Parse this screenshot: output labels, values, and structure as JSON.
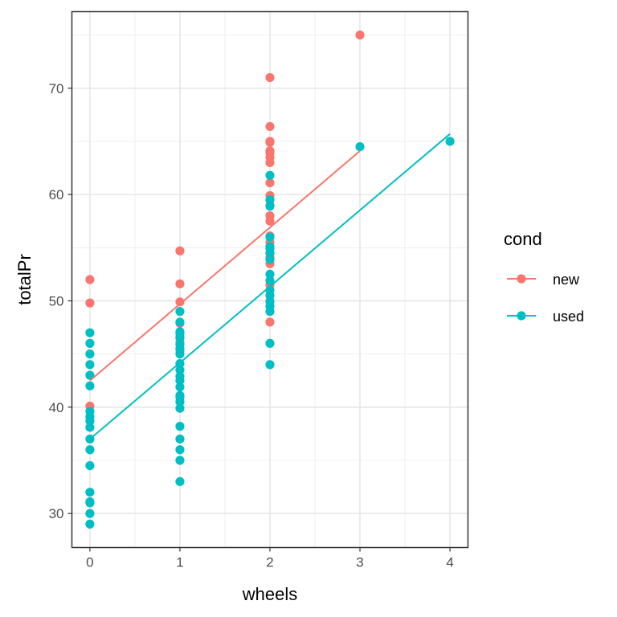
{
  "chart_data": {
    "type": "scatter",
    "xlabel": "wheels",
    "ylabel": "totalPr",
    "xlim": [
      -0.2,
      4.2
    ],
    "ylim": [
      26.8,
      77.2
    ],
    "x_ticks": [
      0,
      1,
      2,
      3,
      4
    ],
    "y_ticks": [
      30,
      40,
      50,
      60,
      70
    ],
    "grid": true,
    "legend": {
      "title": "cond",
      "position": "right"
    },
    "series": [
      {
        "name": "new",
        "color": "#F8766D",
        "points": [
          [
            0,
            52
          ],
          [
            0,
            49.8
          ],
          [
            0,
            40.1
          ],
          [
            1,
            54.7
          ],
          [
            1,
            51.6
          ],
          [
            1,
            49.9
          ],
          [
            1,
            47.9
          ],
          [
            1,
            46.6
          ],
          [
            1,
            46.1
          ],
          [
            1,
            45.3
          ],
          [
            2,
            71
          ],
          [
            2,
            66.4
          ],
          [
            2,
            65
          ],
          [
            2,
            64.9
          ],
          [
            2,
            64.1
          ],
          [
            2,
            63.9
          ],
          [
            2,
            63.5
          ],
          [
            2,
            63
          ],
          [
            2,
            61.1
          ],
          [
            2,
            59.9
          ],
          [
            2,
            59
          ],
          [
            2,
            58
          ],
          [
            2,
            57.5
          ],
          [
            2,
            56.1
          ],
          [
            2,
            55.5
          ],
          [
            2,
            54.5
          ],
          [
            2,
            54.1
          ],
          [
            2,
            53.5
          ],
          [
            2,
            51.5
          ],
          [
            2,
            50
          ],
          [
            2,
            48
          ],
          [
            3,
            75
          ]
        ],
        "fit": {
          "from": [
            0,
            42.5
          ],
          "to": [
            3,
            64.1
          ]
        }
      },
      {
        "name": "used",
        "color": "#00BFC4",
        "points": [
          [
            0,
            47
          ],
          [
            0,
            46
          ],
          [
            0,
            45
          ],
          [
            0,
            44
          ],
          [
            0,
            43
          ],
          [
            0,
            42
          ],
          [
            0,
            39.6
          ],
          [
            0,
            39.1
          ],
          [
            0,
            38.7
          ],
          [
            0,
            38.1
          ],
          [
            0,
            37
          ],
          [
            0,
            36
          ],
          [
            0,
            34.5
          ],
          [
            0,
            32
          ],
          [
            0,
            31.1
          ],
          [
            0,
            31
          ],
          [
            0,
            30
          ],
          [
            0,
            29
          ],
          [
            1,
            49
          ],
          [
            1,
            48
          ],
          [
            1,
            47.1
          ],
          [
            1,
            46.9
          ],
          [
            1,
            46.5
          ],
          [
            1,
            45.9
          ],
          [
            1,
            45.5
          ],
          [
            1,
            45
          ],
          [
            1,
            44.1
          ],
          [
            1,
            43.5
          ],
          [
            1,
            42.9
          ],
          [
            1,
            42.5
          ],
          [
            1,
            41.9
          ],
          [
            1,
            41.1
          ],
          [
            1,
            40.9
          ],
          [
            1,
            40.5
          ],
          [
            1,
            39.9
          ],
          [
            1,
            38.2
          ],
          [
            1,
            37
          ],
          [
            1,
            36
          ],
          [
            1,
            35
          ],
          [
            1,
            33
          ],
          [
            2,
            61.8
          ],
          [
            2,
            59.5
          ],
          [
            2,
            58.9
          ],
          [
            2,
            56
          ],
          [
            2,
            55.1
          ],
          [
            2,
            54.9
          ],
          [
            2,
            54.5
          ],
          [
            2,
            53.9
          ],
          [
            2,
            52.5
          ],
          [
            2,
            51.9
          ],
          [
            2,
            51
          ],
          [
            2,
            50.5
          ],
          [
            2,
            49.9
          ],
          [
            2,
            49.5
          ],
          [
            2,
            49
          ],
          [
            2,
            46
          ],
          [
            2,
            44
          ],
          [
            3,
            64.5
          ],
          [
            4,
            65
          ]
        ],
        "fit": {
          "from": [
            0,
            37
          ],
          "to": [
            4,
            65.7
          ]
        }
      }
    ]
  }
}
